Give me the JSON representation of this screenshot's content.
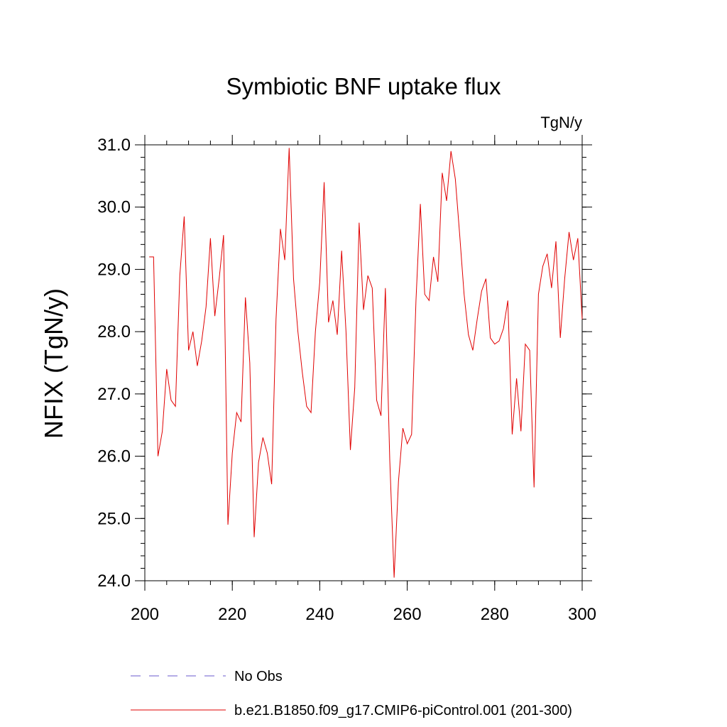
{
  "chart_data": {
    "type": "line",
    "title": "Symbiotic BNF uptake flux",
    "units_label": "TgN/y",
    "ylabel": "NFIX  (TgN/y)",
    "xlabel": "",
    "xlim": [
      200,
      300
    ],
    "ylim": [
      24.0,
      31.0
    ],
    "x_ticks": [
      200,
      220,
      240,
      260,
      280,
      300
    ],
    "x_tick_labels": [
      "200",
      "220",
      "240",
      "260",
      "280",
      "300"
    ],
    "y_ticks": [
      24,
      25,
      26,
      27,
      28,
      29,
      30,
      31
    ],
    "y_tick_labels": [
      "24.0",
      "25.0",
      "26.0",
      "27.0",
      "28.0",
      "29.0",
      "30.0",
      "31.0"
    ],
    "grid": false,
    "legend_position": "bottom",
    "series": [
      {
        "name": "b.e21.B1850.f09_g17.CMIP6-piControl.001 (201-300)",
        "color": "#e00000",
        "style": "solid",
        "x": [
          201,
          202,
          203,
          204,
          205,
          206,
          207,
          208,
          209,
          210,
          211,
          212,
          213,
          214,
          215,
          216,
          217,
          218,
          219,
          220,
          221,
          222,
          223,
          224,
          225,
          226,
          227,
          228,
          229,
          230,
          231,
          232,
          233,
          234,
          235,
          236,
          237,
          238,
          239,
          240,
          241,
          242,
          243,
          244,
          245,
          246,
          247,
          248,
          249,
          250,
          251,
          252,
          253,
          254,
          255,
          256,
          257,
          258,
          259,
          260,
          261,
          262,
          263,
          264,
          265,
          266,
          267,
          268,
          269,
          270,
          271,
          272,
          273,
          274,
          275,
          276,
          277,
          278,
          279,
          280,
          281,
          282,
          283,
          284,
          285,
          286,
          287,
          288,
          289,
          290,
          291,
          292,
          293,
          294,
          295,
          296,
          297,
          298,
          299,
          300
        ],
        "values": [
          29.2,
          29.2,
          26.0,
          26.4,
          27.4,
          26.9,
          26.8,
          28.9,
          29.85,
          27.7,
          28.0,
          27.45,
          27.85,
          28.4,
          29.5,
          28.25,
          28.85,
          29.55,
          24.9,
          26.05,
          26.7,
          26.55,
          28.55,
          27.5,
          24.7,
          25.9,
          26.3,
          26.05,
          25.55,
          28.2,
          29.65,
          29.15,
          30.95,
          28.85,
          28.0,
          27.35,
          26.8,
          26.7,
          28.0,
          28.8,
          30.4,
          28.15,
          28.5,
          27.95,
          29.3,
          28.0,
          26.1,
          27.1,
          29.75,
          28.35,
          28.9,
          28.7,
          26.9,
          26.65,
          28.7,
          25.95,
          24.05,
          25.6,
          26.45,
          26.2,
          26.35,
          28.5,
          30.05,
          28.6,
          28.5,
          29.2,
          28.8,
          30.55,
          30.1,
          30.9,
          30.45,
          29.55,
          28.6,
          27.95,
          27.7,
          28.2,
          28.65,
          28.85,
          27.9,
          27.8,
          27.85,
          28.05,
          28.5,
          26.35,
          27.25,
          26.4,
          27.8,
          27.7,
          25.5,
          28.6,
          29.05,
          29.25,
          28.7,
          29.45,
          27.9,
          28.85,
          29.6,
          29.15,
          29.5,
          28.2
        ]
      }
    ],
    "reference": {
      "name": "No Obs",
      "color": "#6a5acd",
      "style": "dashed",
      "values": []
    }
  }
}
